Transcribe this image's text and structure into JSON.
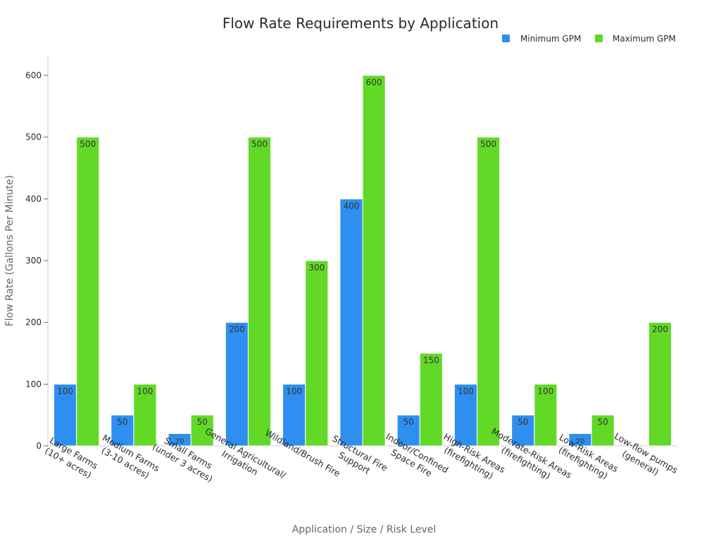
{
  "chart_data": {
    "type": "bar",
    "title": "Flow Rate Requirements by Application",
    "xlabel": "Application / Size / Risk Level",
    "ylabel": "Flow Rate (Gallons Per Minute)",
    "ylim": [
      0,
      630
    ],
    "yticks": [
      0,
      100,
      200,
      300,
      400,
      500,
      600
    ],
    "legend_position": "top-right",
    "categories": [
      [
        "Large Farms",
        "(10+ acres)"
      ],
      [
        "Medium Farms",
        "(3-10 acres)"
      ],
      [
        "Small Farms",
        "(under 3 acres)"
      ],
      [
        "General Agricultural/",
        "Irrigation"
      ],
      [
        "Wildland/Brush Fire"
      ],
      [
        "Structural Fire",
        "Support"
      ],
      [
        "Indoor/Confined",
        "Space Fire"
      ],
      [
        "High-Risk Areas",
        "(firefighting)"
      ],
      [
        "Moderate-Risk Areas",
        "(firefighting)"
      ],
      [
        "Low-Risk Areas",
        "(firefighting)"
      ],
      [
        "Low-flow pumps",
        "(general)"
      ]
    ],
    "series": [
      {
        "name": "Minimum GPM",
        "color": "#2e8ff0",
        "values": [
          100,
          50,
          20,
          200,
          100,
          400,
          50,
          100,
          50,
          20,
          null
        ]
      },
      {
        "name": "Maximum GPM",
        "color": "#62d927",
        "values": [
          500,
          100,
          50,
          500,
          300,
          600,
          150,
          500,
          100,
          50,
          200
        ]
      }
    ]
  }
}
